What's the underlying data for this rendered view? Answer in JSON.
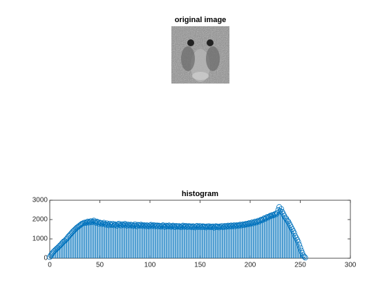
{
  "image_panel": {
    "title": "original image"
  },
  "chart_data": {
    "type": "stem",
    "title": "histogram",
    "color": "#0072bd",
    "xlim": [
      0,
      300
    ],
    "xticks": [
      0,
      50,
      100,
      150,
      200,
      250,
      300
    ],
    "ylim": [
      0,
      3000
    ],
    "yticks": [
      0,
      1000,
      2000,
      3000
    ],
    "x": [
      0,
      1,
      2,
      3,
      4,
      5,
      6,
      7,
      8,
      9,
      10,
      11,
      12,
      13,
      14,
      15,
      16,
      17,
      18,
      19,
      20,
      21,
      22,
      23,
      24,
      25,
      26,
      27,
      28,
      29,
      30,
      31,
      32,
      33,
      34,
      35,
      36,
      37,
      38,
      39,
      40,
      41,
      42,
      43,
      44,
      45,
      46,
      47,
      48,
      49,
      50,
      51,
      52,
      53,
      54,
      55,
      56,
      57,
      58,
      59,
      60,
      61,
      62,
      63,
      64,
      65,
      66,
      67,
      68,
      69,
      70,
      71,
      72,
      73,
      74,
      75,
      76,
      77,
      78,
      79,
      80,
      81,
      82,
      83,
      84,
      85,
      86,
      87,
      88,
      89,
      90,
      91,
      92,
      93,
      94,
      95,
      96,
      97,
      98,
      99,
      100,
      101,
      102,
      103,
      104,
      105,
      106,
      107,
      108,
      109,
      110,
      111,
      112,
      113,
      114,
      115,
      116,
      117,
      118,
      119,
      120,
      121,
      122,
      123,
      124,
      125,
      126,
      127,
      128,
      129,
      130,
      131,
      132,
      133,
      134,
      135,
      136,
      137,
      138,
      139,
      140,
      141,
      142,
      143,
      144,
      145,
      146,
      147,
      148,
      149,
      150,
      151,
      152,
      153,
      154,
      155,
      156,
      157,
      158,
      159,
      160,
      161,
      162,
      163,
      164,
      165,
      166,
      167,
      168,
      169,
      170,
      171,
      172,
      173,
      174,
      175,
      176,
      177,
      178,
      179,
      180,
      181,
      182,
      183,
      184,
      185,
      186,
      187,
      188,
      189,
      190,
      191,
      192,
      193,
      194,
      195,
      196,
      197,
      198,
      199,
      200,
      201,
      202,
      203,
      204,
      205,
      206,
      207,
      208,
      209,
      210,
      211,
      212,
      213,
      214,
      215,
      216,
      217,
      218,
      219,
      220,
      221,
      222,
      223,
      224,
      225,
      226,
      227,
      228,
      229,
      230,
      231,
      232,
      233,
      234,
      235,
      236,
      237,
      238,
      239,
      240,
      241,
      242,
      243,
      244,
      245,
      246,
      247,
      248,
      249,
      250,
      251,
      252,
      253,
      254,
      255
    ],
    "values": [
      60,
      150,
      220,
      290,
      350,
      400,
      450,
      500,
      540,
      600,
      650,
      700,
      760,
      820,
      870,
      900,
      960,
      1010,
      1080,
      1150,
      1200,
      1260,
      1320,
      1380,
      1430,
      1480,
      1530,
      1580,
      1620,
      1660,
      1700,
      1740,
      1780,
      1800,
      1830,
      1850,
      1820,
      1870,
      1900,
      1840,
      1880,
      1920,
      1860,
      1900,
      1950,
      1880,
      1830,
      1900,
      1860,
      1790,
      1850,
      1820,
      1760,
      1800,
      1840,
      1770,
      1730,
      1810,
      1750,
      1700,
      1790,
      1740,
      1720,
      1780,
      1700,
      1760,
      1730,
      1680,
      1750,
      1790,
      1720,
      1690,
      1760,
      1740,
      1700,
      1780,
      1730,
      1680,
      1750,
      1710,
      1690,
      1740,
      1720,
      1660,
      1700,
      1760,
      1690,
      1650,
      1730,
      1710,
      1680,
      1740,
      1700,
      1660,
      1720,
      1690,
      1650,
      1710,
      1680,
      1640,
      1700,
      1730,
      1660,
      1690,
      1720,
      1650,
      1680,
      1700,
      1640,
      1690,
      1670,
      1630,
      1680,
      1710,
      1650,
      1620,
      1690,
      1660,
      1640,
      1700,
      1670,
      1620,
      1660,
      1690,
      1640,
      1610,
      1680,
      1650,
      1630,
      1670,
      1640,
      1600,
      1660,
      1690,
      1620,
      1650,
      1680,
      1610,
      1640,
      1670,
      1620,
      1650,
      1600,
      1660,
      1630,
      1590,
      1650,
      1680,
      1610,
      1640,
      1670,
      1600,
      1630,
      1660,
      1610,
      1640,
      1590,
      1650,
      1620,
      1660,
      1600,
      1640,
      1610,
      1650,
      1580,
      1630,
      1660,
      1610,
      1640,
      1590,
      1650,
      1620,
      1670,
      1600,
      1640,
      1680,
      1620,
      1660,
      1690,
      1630,
      1670,
      1700,
      1640,
      1680,
      1710,
      1650,
      1690,
      1720,
      1670,
      1700,
      1740,
      1690,
      1730,
      1760,
      1710,
      1750,
      1790,
      1740,
      1780,
      1820,
      1770,
      1810,
      1860,
      1800,
      1850,
      1900,
      1840,
      1890,
      1940,
      1890,
      1950,
      2000,
      1960,
      2020,
      2070,
      2030,
      2090,
      2140,
      2100,
      2160,
      2200,
      2180,
      2240,
      2210,
      2250,
      2300,
      2270,
      2350,
      2500,
      2650,
      2450,
      2550,
      2400,
      2300,
      2200,
      2100,
      2050,
      1950,
      1900,
      1800,
      1700,
      1600,
      1500,
      1400,
      1300,
      1150,
      1050,
      950,
      850,
      700,
      550,
      400,
      280,
      150,
      80,
      30
    ]
  }
}
